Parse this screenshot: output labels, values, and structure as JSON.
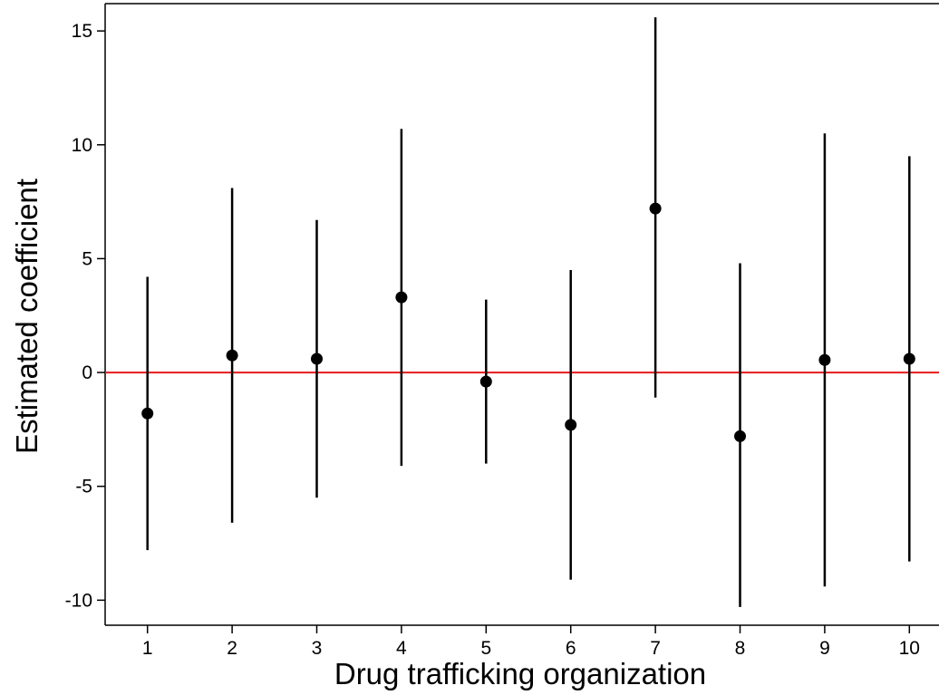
{
  "chart_data": {
    "type": "scatter",
    "title": "",
    "xlabel": "Drug trafficking organization",
    "ylabel": "Estimated coefficient",
    "x_ticks": [
      "1",
      "2",
      "3",
      "4",
      "5",
      "6",
      "7",
      "8",
      "9",
      "10"
    ],
    "y_ticks": [
      "-10",
      "-5",
      "0",
      "5",
      "10",
      "15"
    ],
    "y_tick_values": [
      -10,
      -5,
      0,
      5,
      10,
      15
    ],
    "xlim": [
      0.5,
      10.35
    ],
    "ylim": [
      -11.1,
      16.2
    ],
    "grid": false,
    "legend": "none",
    "reference_line": {
      "y": 0,
      "color": "#e41a1c"
    },
    "marker_color": "#000000",
    "points": [
      {
        "x": 1,
        "estimate": -1.8,
        "lower": -7.8,
        "upper": 4.2
      },
      {
        "x": 2,
        "estimate": 0.75,
        "lower": -6.6,
        "upper": 8.1
      },
      {
        "x": 3,
        "estimate": 0.6,
        "lower": -5.5,
        "upper": 6.7
      },
      {
        "x": 4,
        "estimate": 3.3,
        "lower": -4.1,
        "upper": 10.7
      },
      {
        "x": 5,
        "estimate": -0.4,
        "lower": -4.0,
        "upper": 3.2
      },
      {
        "x": 6,
        "estimate": -2.3,
        "lower": -9.1,
        "upper": 4.5
      },
      {
        "x": 7,
        "estimate": 7.2,
        "lower": -1.1,
        "upper": 15.6
      },
      {
        "x": 8,
        "estimate": -2.8,
        "lower": -10.3,
        "upper": 4.8
      },
      {
        "x": 9,
        "estimate": 0.55,
        "lower": -9.4,
        "upper": 10.5
      },
      {
        "x": 10,
        "estimate": 0.6,
        "lower": -8.3,
        "upper": 9.5
      }
    ]
  }
}
